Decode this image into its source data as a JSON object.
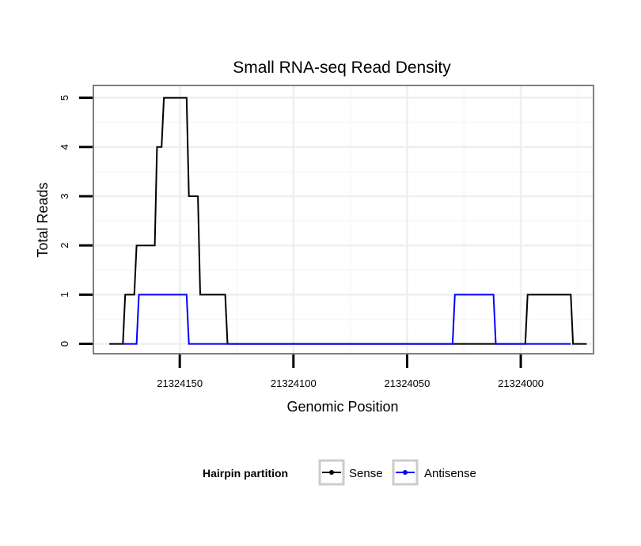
{
  "chart_data": {
    "type": "line",
    "title": "Small RNA-seq Read Density",
    "xlabel": "Genomic Position",
    "ylabel": "Total Reads",
    "x_reversed": true,
    "xlim": [
      21324188,
      21323968
    ],
    "ylim": [
      -0.2,
      5.25
    ],
    "x_ticks": [
      21324150,
      21324100,
      21324050,
      21324000
    ],
    "y_ticks": [
      0,
      1,
      2,
      3,
      4,
      5
    ],
    "grid": true,
    "legend_title": "Hairpin partition",
    "legend_position": "bottom",
    "series": [
      {
        "name": "Sense",
        "color": "#000000",
        "x": [
          21324181,
          21324175,
          21324174,
          21324170,
          21324169,
          21324161,
          21324160,
          21324158,
          21324157,
          21324154,
          21324153,
          21324147,
          21324146,
          21324142,
          21324141,
          21324130,
          21324129,
          21324078,
          21324077,
          21324030,
          21324029,
          21323998,
          21323997,
          21323978,
          21323977,
          21323971
        ],
        "y": [
          0,
          0,
          1,
          1,
          2,
          2,
          4,
          4,
          5,
          5,
          5,
          5,
          3,
          3,
          1,
          1,
          0,
          0,
          0,
          0,
          0,
          0,
          1,
          1,
          0,
          0
        ]
      },
      {
        "name": "Antisense",
        "color": "#0000ff",
        "x": [
          21324175,
          21324169,
          21324168,
          21324147,
          21324146,
          21324130,
          21324129,
          21324030,
          21324029,
          21324012,
          21324011,
          21323978
        ],
        "y": [
          0,
          0,
          1,
          1,
          0,
          0,
          0,
          0,
          1,
          1,
          0,
          0
        ]
      }
    ]
  }
}
